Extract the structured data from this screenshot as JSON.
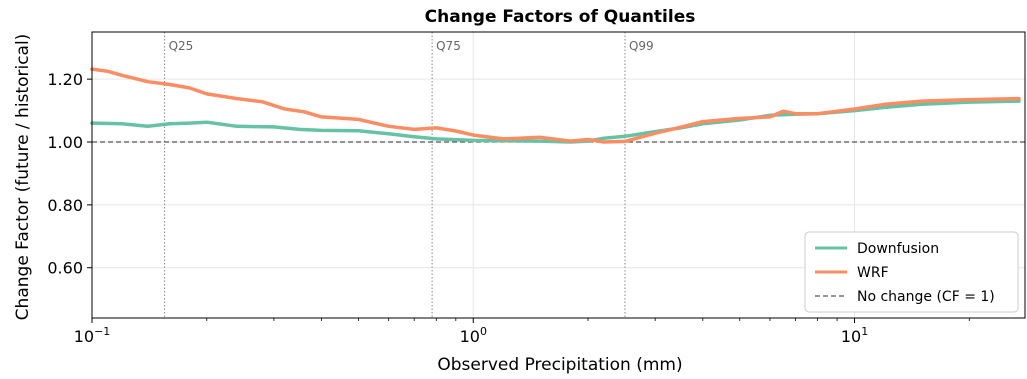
{
  "chart_data": {
    "type": "line",
    "title": "Change Factors of Quantiles",
    "xlabel": "Observed Precipitation (mm)",
    "ylabel": "Change Factor  (future / historical)",
    "xscale": "log",
    "xlim": [
      0.1,
      28
    ],
    "ylim": [
      0.44,
      1.35
    ],
    "grid": true,
    "legend_position": "bottom-right",
    "x_ticks": [
      {
        "value": 0.1,
        "base": "10",
        "exp": "−1"
      },
      {
        "value": 1,
        "base": "10",
        "exp": "0"
      },
      {
        "value": 10,
        "base": "10",
        "exp": "1"
      }
    ],
    "y_ticks": [
      {
        "value": 0.6,
        "label": "0.60"
      },
      {
        "value": 0.8,
        "label": "0.80"
      },
      {
        "value": 1.0,
        "label": "1.00"
      },
      {
        "value": 1.2,
        "label": "1.20"
      }
    ],
    "quantile_markers": [
      {
        "label": "Q25",
        "x": 0.155
      },
      {
        "label": "Q75",
        "x": 0.78
      },
      {
        "label": "Q99",
        "x": 2.5
      }
    ],
    "reference_line": {
      "name": "No change (CF = 1)",
      "y": 1.0,
      "color": "#555555"
    },
    "series": [
      {
        "name": "Downfusion",
        "color": "#66c2a5",
        "x": [
          0.1,
          0.12,
          0.14,
          0.16,
          0.18,
          0.2,
          0.24,
          0.3,
          0.35,
          0.4,
          0.5,
          0.6,
          0.7,
          0.8,
          1.0,
          1.2,
          1.5,
          1.8,
          2.0,
          2.2,
          2.5,
          3.0,
          3.5,
          4.0,
          5.0,
          6.0,
          7.0,
          8.0,
          10.0,
          12.0,
          15.0,
          20.0,
          27.0
        ],
        "y": [
          1.06,
          1.058,
          1.05,
          1.058,
          1.06,
          1.063,
          1.05,
          1.048,
          1.04,
          1.037,
          1.036,
          1.026,
          1.017,
          1.01,
          1.005,
          1.004,
          1.003,
          1.0,
          1.003,
          1.012,
          1.018,
          1.033,
          1.045,
          1.058,
          1.07,
          1.085,
          1.088,
          1.09,
          1.1,
          1.11,
          1.12,
          1.127,
          1.13
        ]
      },
      {
        "name": "WRF",
        "color": "#fc8d62",
        "x": [
          0.1,
          0.11,
          0.12,
          0.14,
          0.16,
          0.18,
          0.2,
          0.24,
          0.28,
          0.32,
          0.36,
          0.4,
          0.5,
          0.6,
          0.7,
          0.8,
          0.9,
          1.0,
          1.2,
          1.5,
          1.8,
          2.0,
          2.2,
          2.5,
          3.0,
          3.5,
          4.0,
          5.0,
          6.0,
          6.5,
          7.0,
          8.0,
          10.0,
          12.0,
          15.0,
          20.0,
          27.0
        ],
        "y": [
          1.232,
          1.225,
          1.212,
          1.192,
          1.183,
          1.172,
          1.153,
          1.138,
          1.128,
          1.105,
          1.096,
          1.08,
          1.072,
          1.05,
          1.04,
          1.045,
          1.035,
          1.022,
          1.01,
          1.015,
          1.003,
          1.008,
          1.0,
          1.002,
          1.028,
          1.047,
          1.065,
          1.075,
          1.08,
          1.098,
          1.09,
          1.09,
          1.105,
          1.12,
          1.13,
          1.135,
          1.138
        ]
      }
    ]
  }
}
